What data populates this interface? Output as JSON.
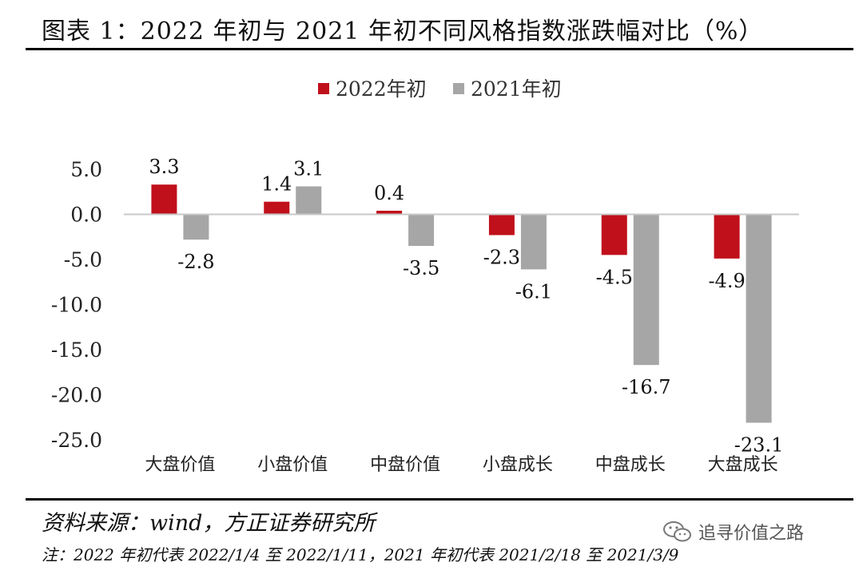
{
  "title": "图表 1：2022 年初与 2021 年初不同风格指数涨跌幅对比（%）",
  "source": "资料来源：wind，方正证券研究所",
  "note": "注：2022 年初代表 2022/1/4 至 2022/1/11，2021 年初代表 2021/2/18 至 2021/3/9",
  "watermark": "追寻价值之路",
  "colors": {
    "series_2022": "#C0101B",
    "series_2021": "#A6A6A6"
  },
  "chart_data": {
    "type": "bar",
    "categories": [
      "大盘价值",
      "小盘价值",
      "中盘价值",
      "小盘成长",
      "中盘成长",
      "大盘成长"
    ],
    "series": [
      {
        "name": "2022年初",
        "values": [
          3.3,
          1.4,
          0.4,
          -2.3,
          -4.5,
          -4.9
        ]
      },
      {
        "name": "2021年初",
        "values": [
          -2.8,
          3.1,
          -3.5,
          -6.1,
          -16.7,
          -23.1
        ]
      }
    ],
    "data_labels": [
      [
        "3.3",
        "1.4",
        "0.4",
        "-2.3",
        "-4.5",
        "-4.9"
      ],
      [
        "-2.8",
        "3.1",
        "-3.5",
        "-6.1",
        "-16.7",
        "-23.1"
      ]
    ],
    "ylim": [
      -25,
      5
    ],
    "yticks": [
      5,
      0,
      -5,
      -10,
      -15,
      -20,
      -25
    ],
    "ytick_labels": [
      "5.0",
      "0.0",
      "-5.0",
      "-10.0",
      "-15.0",
      "-20.0",
      "-25.0"
    ],
    "legend_position": "top-center",
    "grid": false
  }
}
